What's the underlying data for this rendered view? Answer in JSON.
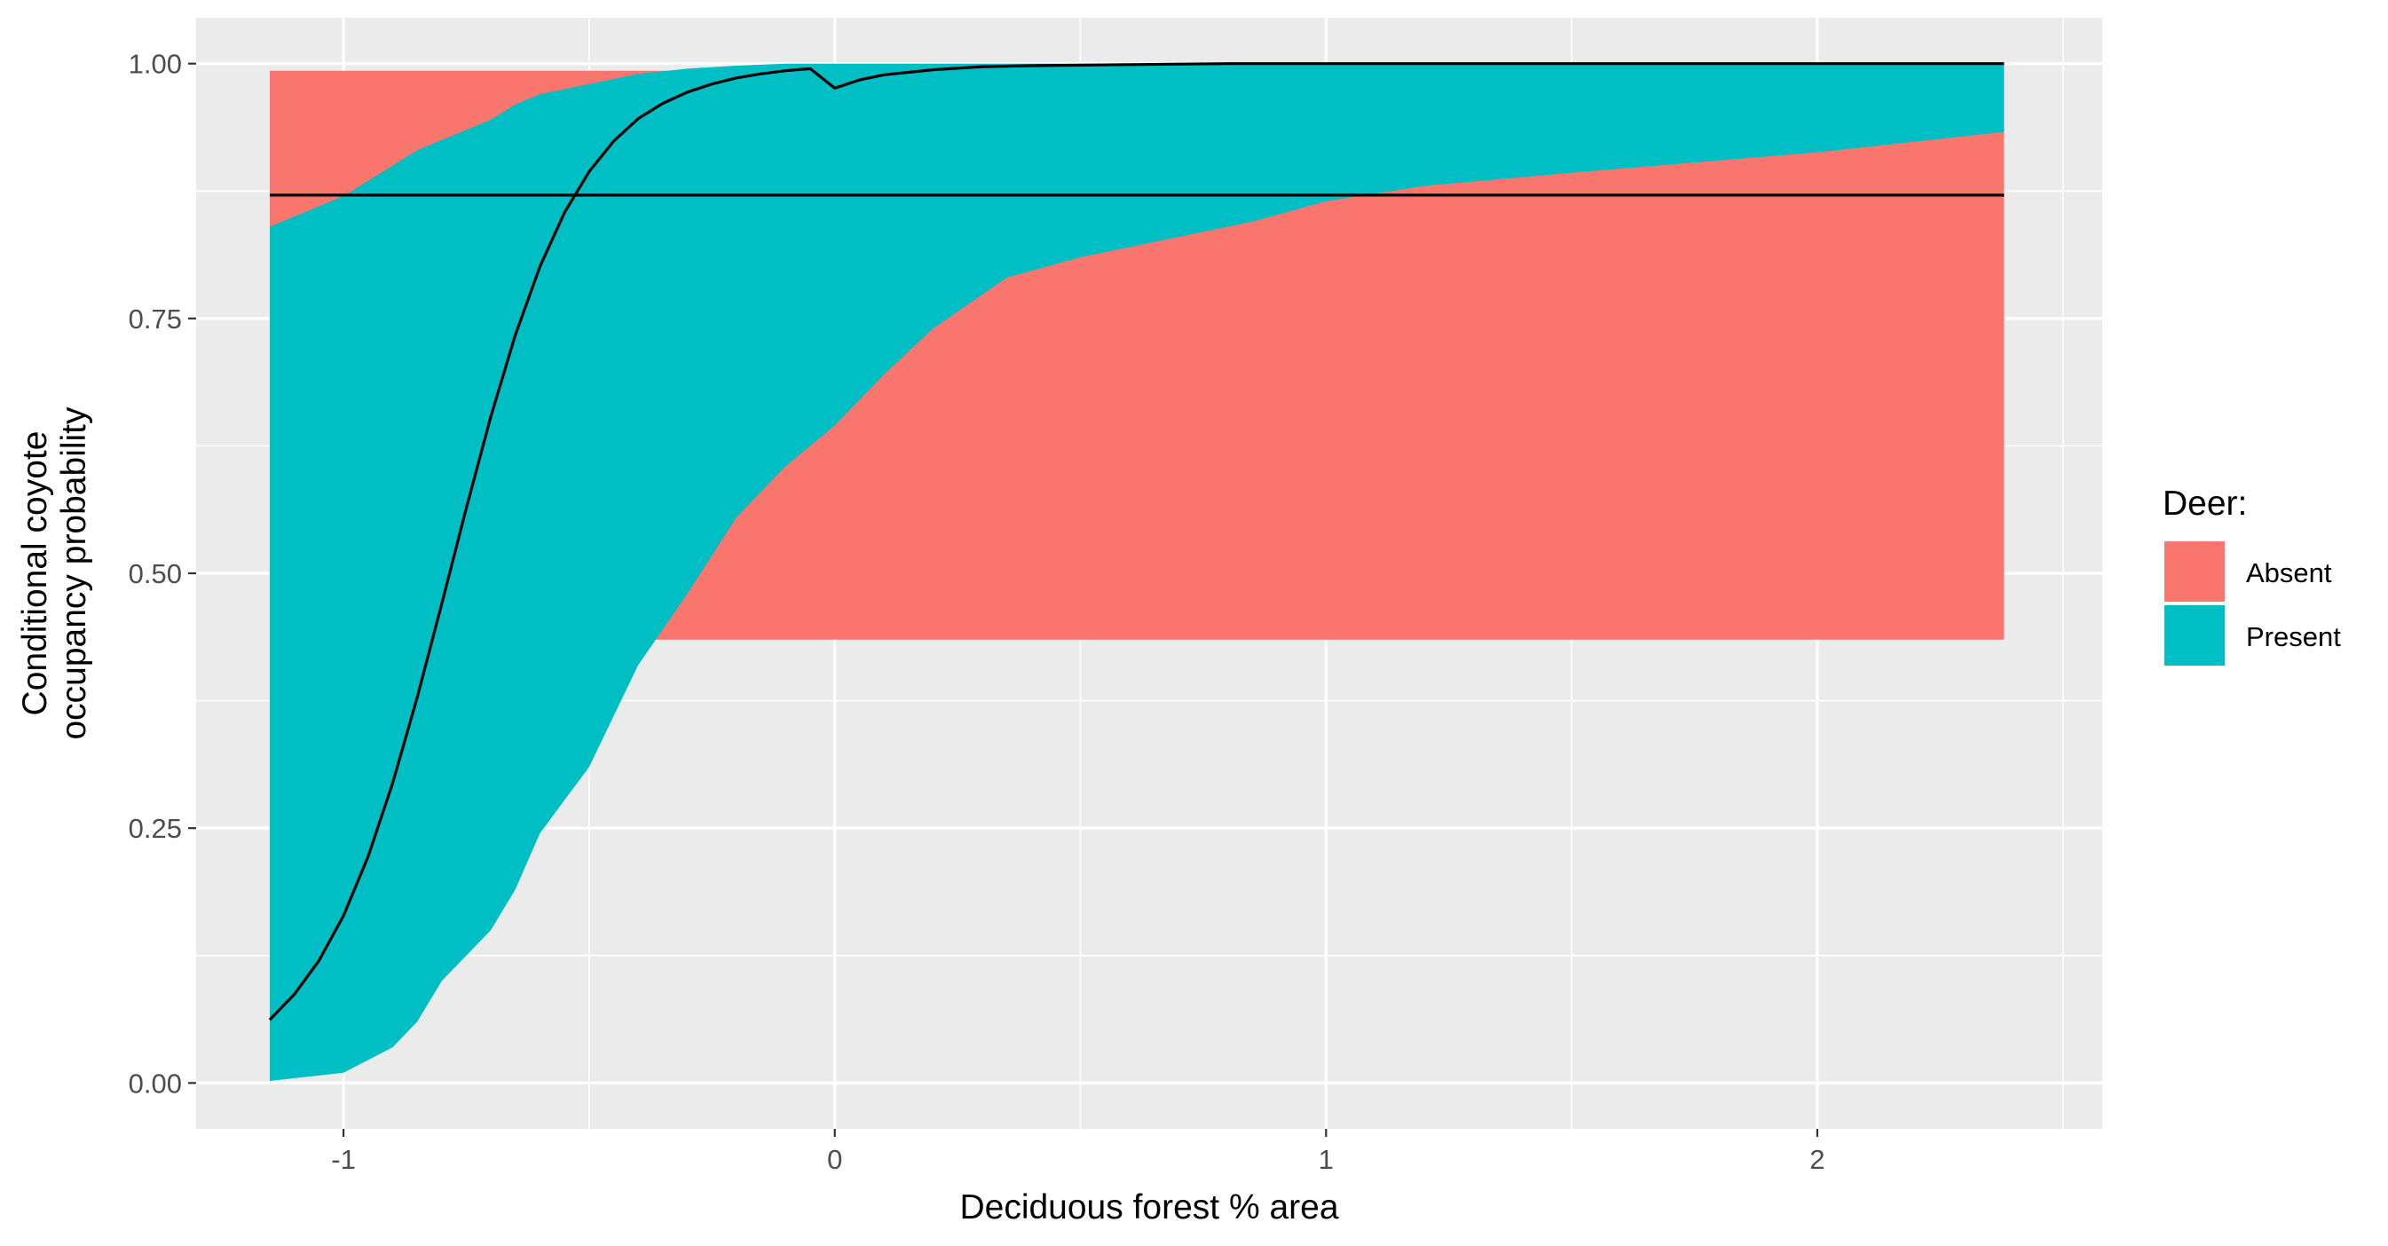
{
  "chart_data": {
    "type": "area",
    "title": "",
    "xlabel": "Deciduous forest % area",
    "ylabel_lines": [
      "Conditional coyote",
      "occupancy probability"
    ],
    "xlim": [
      -1.3,
      2.58
    ],
    "ylim": [
      -0.045,
      1.045
    ],
    "x_ticks": [
      -1,
      0,
      1,
      2
    ],
    "x_tick_labels": [
      "-1",
      "0",
      "1",
      "2"
    ],
    "y_ticks": [
      0,
      0.25,
      0.5,
      0.75,
      1
    ],
    "y_tick_labels": [
      "0.00",
      "0.25",
      "0.50",
      "0.75",
      "1.00"
    ],
    "grid": true,
    "legend": {
      "title": "Deer:",
      "position": "right",
      "entries": [
        {
          "label": "Absent",
          "color": "#F8766D"
        },
        {
          "label": "Present",
          "color": "#00BFC4"
        }
      ]
    },
    "series": [
      {
        "name": "Absent",
        "kind": "ribbon",
        "color": "#F8766D",
        "x": [
          -1.15,
          -1.0,
          -0.9,
          -0.85,
          -0.8,
          -0.75,
          -0.7,
          -0.65,
          -0.6,
          -0.5,
          -0.4,
          -0.3,
          -0.2,
          -0.1,
          0.0,
          0.1,
          0.2,
          0.35,
          0.5,
          0.85,
          1.0,
          1.2,
          1.5,
          1.8,
          2.0,
          2.38
        ],
        "lower": [
          0.435,
          0.435,
          0.435,
          0.435,
          0.435,
          0.435,
          0.435,
          0.435,
          0.435,
          0.435,
          0.435,
          0.435,
          0.435,
          0.435,
          0.435,
          0.435,
          0.435,
          0.435,
          0.435,
          0.435,
          0.435,
          0.435,
          0.435,
          0.435,
          0.435,
          0.435
        ],
        "upper": [
          0.993,
          0.993,
          0.993,
          0.993,
          0.993,
          0.993,
          0.993,
          0.993,
          0.993,
          0.993,
          0.993,
          0.993,
          0.993,
          0.993,
          0.993,
          0.993,
          0.993,
          0.993,
          0.993,
          0.993,
          0.993,
          0.993,
          0.993,
          0.993,
          0.993,
          0.993
        ]
      },
      {
        "name": "Present",
        "kind": "ribbon",
        "color": "#00BFC4",
        "x": [
          -1.15,
          -1.0,
          -0.9,
          -0.85,
          -0.8,
          -0.75,
          -0.7,
          -0.65,
          -0.6,
          -0.5,
          -0.4,
          -0.3,
          -0.2,
          -0.1,
          0.0,
          0.1,
          0.2,
          0.35,
          0.5,
          0.85,
          1.0,
          1.2,
          1.5,
          1.8,
          2.0,
          2.38
        ],
        "lower": [
          0.002,
          0.01,
          0.035,
          0.06,
          0.1,
          0.125,
          0.15,
          0.19,
          0.245,
          0.31,
          0.41,
          0.48,
          0.555,
          0.605,
          0.645,
          0.695,
          0.74,
          0.79,
          0.81,
          0.845,
          0.865,
          0.88,
          0.893,
          0.905,
          0.913,
          0.933
        ],
        "upper": [
          0.84,
          0.87,
          0.9,
          0.915,
          0.925,
          0.935,
          0.945,
          0.96,
          0.97,
          0.98,
          0.99,
          0.995,
          0.998,
          1.0,
          1.0,
          1.0,
          1.0,
          1.0,
          1.0,
          1.0,
          1.0,
          1.0,
          1.0,
          1.0,
          1.0,
          1.0
        ]
      },
      {
        "name": "",
        "kind": "line",
        "color": "#000000",
        "x": [
          -1.15,
          -1.1,
          -1.05,
          -1.0,
          -0.95,
          -0.9,
          -0.85,
          -0.8,
          -0.75,
          -0.7,
          -0.65,
          -0.6,
          -0.55,
          -0.5,
          -0.45,
          -0.4,
          -0.35,
          -0.3,
          -0.25,
          -0.2,
          -0.15,
          -0.1,
          -0.05,
          0.0,
          0.05,
          0.1,
          0.2,
          0.3,
          0.4,
          0.6,
          0.8,
          1.0,
          1.5,
          2.0,
          2.38
        ],
        "y": [
          0.062,
          0.087,
          0.12,
          0.164,
          0.222,
          0.294,
          0.378,
          0.47,
          0.564,
          0.654,
          0.734,
          0.801,
          0.854,
          0.894,
          0.924,
          0.946,
          0.961,
          0.972,
          0.98,
          0.986,
          0.99,
          0.993,
          0.995,
          0.976,
          0.984,
          0.989,
          0.994,
          0.997,
          0.998,
          0.999,
          1.0,
          1.0,
          1.0,
          1.0,
          1.0
        ]
      },
      {
        "name": "",
        "kind": "line",
        "color": "#000000",
        "x": [
          -1.15,
          2.38
        ],
        "y": [
          0.871,
          0.871
        ]
      }
    ]
  }
}
